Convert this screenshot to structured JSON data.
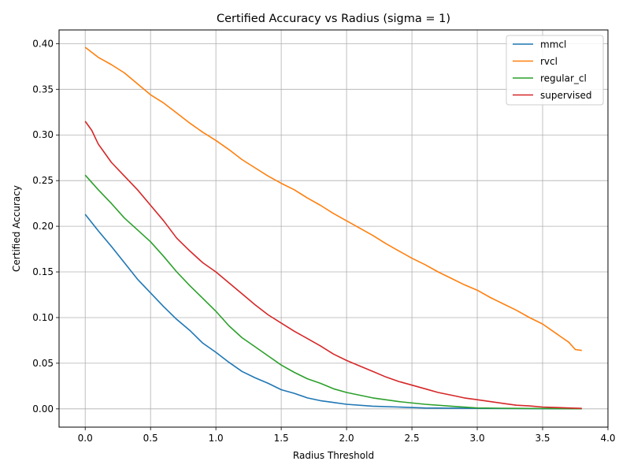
{
  "chart_data": {
    "type": "line",
    "title": "Certified Accuracy vs Radius (sigma = 1)",
    "xlabel": "Radius Threshold",
    "ylabel": "Certified Accuracy",
    "xlim": [
      -0.2,
      4.0
    ],
    "ylim": [
      -0.02,
      0.415
    ],
    "xticks": [
      0.0,
      0.5,
      1.0,
      1.5,
      2.0,
      2.5,
      3.0,
      3.5,
      4.0
    ],
    "xtick_labels": [
      "0.0",
      "0.5",
      "1.0",
      "1.5",
      "2.0",
      "2.5",
      "3.0",
      "3.5",
      "4.0"
    ],
    "yticks": [
      0.0,
      0.05,
      0.1,
      0.15,
      0.2,
      0.25,
      0.3,
      0.35,
      0.4
    ],
    "ytick_labels": [
      "0.00",
      "0.05",
      "0.10",
      "0.15",
      "0.20",
      "0.25",
      "0.30",
      "0.35",
      "0.40"
    ],
    "grid": true,
    "legend_position": "top-right",
    "series": [
      {
        "name": "mmcl",
        "color": "#1f77b4",
        "x": [
          0.0,
          0.1,
          0.2,
          0.3,
          0.4,
          0.5,
          0.6,
          0.7,
          0.8,
          0.9,
          1.0,
          1.1,
          1.2,
          1.3,
          1.4,
          1.5,
          1.6,
          1.7,
          1.8,
          1.9,
          2.0,
          2.2,
          2.4,
          2.6,
          3.0,
          3.5,
          3.8
        ],
        "y": [
          0.213,
          0.195,
          0.178,
          0.16,
          0.142,
          0.127,
          0.112,
          0.098,
          0.086,
          0.072,
          0.062,
          0.051,
          0.041,
          0.034,
          0.028,
          0.021,
          0.017,
          0.012,
          0.009,
          0.007,
          0.005,
          0.003,
          0.002,
          0.001,
          0.0005,
          0.0002,
          0.0001
        ]
      },
      {
        "name": "rvcl",
        "color": "#ff7f0e",
        "x": [
          0.0,
          0.1,
          0.2,
          0.3,
          0.4,
          0.5,
          0.6,
          0.7,
          0.8,
          0.9,
          1.0,
          1.1,
          1.2,
          1.3,
          1.4,
          1.5,
          1.6,
          1.7,
          1.8,
          1.9,
          2.0,
          2.1,
          2.2,
          2.3,
          2.4,
          2.5,
          2.6,
          2.7,
          2.8,
          2.9,
          3.0,
          3.1,
          3.2,
          3.3,
          3.4,
          3.5,
          3.6,
          3.65,
          3.7,
          3.75,
          3.8
        ],
        "y": [
          0.396,
          0.385,
          0.377,
          0.368,
          0.356,
          0.344,
          0.335,
          0.324,
          0.313,
          0.303,
          0.294,
          0.284,
          0.273,
          0.264,
          0.255,
          0.247,
          0.24,
          0.231,
          0.223,
          0.214,
          0.206,
          0.198,
          0.19,
          0.181,
          0.173,
          0.165,
          0.158,
          0.15,
          0.143,
          0.136,
          0.13,
          0.122,
          0.115,
          0.108,
          0.1,
          0.093,
          0.083,
          0.078,
          0.073,
          0.065,
          0.064
        ]
      },
      {
        "name": "regular_cl",
        "color": "#2ca02c",
        "x": [
          0.0,
          0.1,
          0.2,
          0.3,
          0.4,
          0.5,
          0.6,
          0.7,
          0.8,
          0.9,
          1.0,
          1.1,
          1.2,
          1.3,
          1.4,
          1.5,
          1.6,
          1.7,
          1.8,
          1.9,
          2.0,
          2.2,
          2.4,
          2.6,
          2.8,
          3.0,
          3.3,
          3.8
        ],
        "y": [
          0.256,
          0.24,
          0.225,
          0.209,
          0.196,
          0.183,
          0.167,
          0.15,
          0.135,
          0.121,
          0.107,
          0.091,
          0.078,
          0.068,
          0.058,
          0.048,
          0.04,
          0.033,
          0.028,
          0.022,
          0.018,
          0.012,
          0.008,
          0.005,
          0.003,
          0.001,
          0.0005,
          0.0001
        ]
      },
      {
        "name": "supervised",
        "color": "#d62728",
        "x": [
          0.0,
          0.05,
          0.1,
          0.15,
          0.2,
          0.3,
          0.4,
          0.5,
          0.6,
          0.7,
          0.8,
          0.9,
          1.0,
          1.1,
          1.2,
          1.3,
          1.4,
          1.5,
          1.6,
          1.7,
          1.8,
          1.9,
          2.0,
          2.1,
          2.2,
          2.3,
          2.4,
          2.5,
          2.6,
          2.7,
          2.8,
          2.9,
          3.0,
          3.1,
          3.2,
          3.3,
          3.4,
          3.5,
          3.6,
          3.7,
          3.8
        ],
        "y": [
          0.315,
          0.305,
          0.29,
          0.28,
          0.27,
          0.255,
          0.24,
          0.223,
          0.206,
          0.187,
          0.173,
          0.16,
          0.15,
          0.138,
          0.126,
          0.114,
          0.103,
          0.094,
          0.085,
          0.077,
          0.069,
          0.06,
          0.053,
          0.047,
          0.041,
          0.035,
          0.03,
          0.026,
          0.022,
          0.018,
          0.015,
          0.012,
          0.01,
          0.008,
          0.006,
          0.004,
          0.0032,
          0.002,
          0.0015,
          0.001,
          0.0005
        ]
      }
    ]
  }
}
